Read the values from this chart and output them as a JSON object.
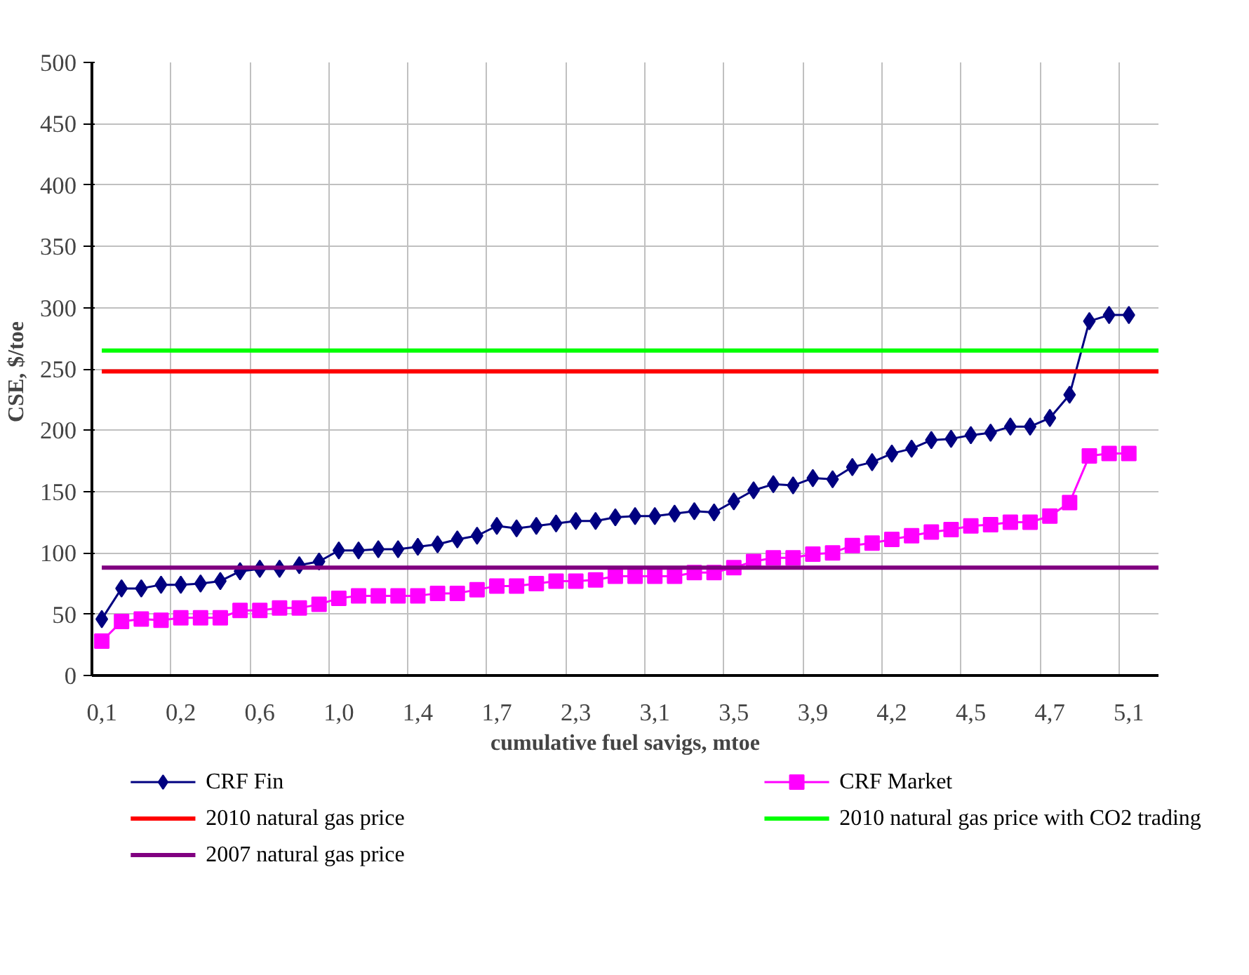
{
  "chart_data": {
    "type": "line",
    "xlabel": "cumulative fuel savigs, mtoe",
    "ylabel": "CSE,  $/toe",
    "categories": [
      "0,1",
      null,
      null,
      null,
      "0,2",
      null,
      null,
      null,
      "0,6",
      null,
      null,
      null,
      "1,0",
      null,
      null,
      null,
      "1,4",
      null,
      null,
      null,
      "1,7",
      null,
      null,
      null,
      "2,3",
      null,
      null,
      null,
      "3,1",
      null,
      null,
      null,
      "3,5",
      null,
      null,
      null,
      "3,9",
      null,
      null,
      null,
      "4,2",
      null,
      null,
      null,
      "4,5",
      null,
      null,
      null,
      "4,7",
      null,
      null,
      null,
      "5,1",
      null
    ],
    "series": [
      {
        "name": "CRF Fin",
        "color": "#000080",
        "marker": "diamond",
        "values": [
          46,
          71,
          71,
          74,
          74,
          75,
          77,
          85,
          87,
          87,
          90,
          93,
          102,
          102,
          103,
          103,
          105,
          107,
          111,
          114,
          122,
          120,
          122,
          124,
          126,
          126,
          129,
          130,
          130,
          132,
          134,
          133,
          142,
          151,
          156,
          155,
          161,
          160,
          170,
          174,
          181,
          185,
          192,
          193,
          196,
          198,
          203,
          203,
          210,
          229,
          289,
          294,
          294,
          null
        ]
      },
      {
        "name": "CRF Market",
        "color": "#ff00ff",
        "marker": "square",
        "values": [
          28,
          44,
          46,
          45,
          47,
          47,
          47,
          53,
          53,
          55,
          55,
          58,
          63,
          65,
          65,
          65,
          65,
          67,
          67,
          70,
          73,
          73,
          75,
          77,
          77,
          78,
          81,
          81,
          81,
          81,
          84,
          84,
          88,
          93,
          96,
          96,
          99,
          100,
          106,
          108,
          111,
          114,
          117,
          119,
          122,
          123,
          125,
          125,
          130,
          141,
          179,
          181,
          181,
          null
        ]
      }
    ],
    "ref_lines": [
      {
        "axis": "y",
        "value": 248,
        "label": "2010 natural gas price",
        "color": "#ff0000"
      },
      {
        "axis": "y",
        "value": 265,
        "label": "2010 natural gas price with CO2 trading",
        "color": "#00ff00"
      },
      {
        "axis": "y",
        "value": 88,
        "label": "2007 natural gas price",
        "color": "#800080"
      }
    ],
    "ylim": [
      0,
      500
    ],
    "yticks": [
      0,
      50,
      100,
      150,
      200,
      250,
      300,
      350,
      400,
      450,
      500
    ],
    "grid": true,
    "legend": "bottom"
  }
}
